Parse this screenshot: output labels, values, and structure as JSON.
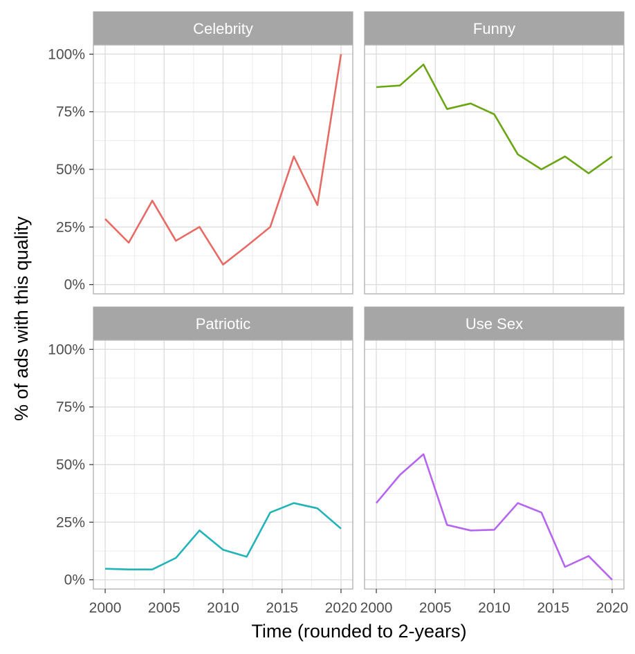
{
  "chart_data": {
    "type": "line",
    "layout": "facet-grid-2x2",
    "xlabel": "Time (rounded to 2-years)",
    "ylabel": "% of ads with this quality",
    "xlim": [
      1999,
      2021
    ],
    "ylim": [
      -4,
      104
    ],
    "x_ticks": [
      2000,
      2005,
      2010,
      2015,
      2020
    ],
    "x_tick_labels": [
      "2000",
      "2005",
      "2010",
      "2015",
      "2020"
    ],
    "y_ticks": [
      0,
      25,
      50,
      75,
      100
    ],
    "y_tick_labels": [
      "0%",
      "25%",
      "50%",
      "75%",
      "100%"
    ],
    "grid": true,
    "x": [
      2000,
      2002,
      2004,
      2006,
      2008,
      2010,
      2012,
      2014,
      2016,
      2018,
      2020
    ],
    "panels": [
      {
        "name": "Celebrity",
        "color": "#E76A64",
        "values": [
          28.5,
          18.2,
          36.4,
          19.0,
          25.0,
          8.7,
          16.7,
          25.0,
          55.6,
          34.5,
          100.0
        ]
      },
      {
        "name": "Funny",
        "color": "#6AA512",
        "values": [
          85.7,
          86.4,
          95.5,
          76.2,
          78.6,
          73.9,
          56.5,
          50.0,
          55.6,
          48.3,
          55.6
        ]
      },
      {
        "name": "Patriotic",
        "color": "#20B3B8",
        "values": [
          4.8,
          4.5,
          4.5,
          9.5,
          21.4,
          13.0,
          10.0,
          29.2,
          33.3,
          31.0,
          22.2
        ]
      },
      {
        "name": "Use Sex",
        "color": "#B565F0",
        "values": [
          33.3,
          45.5,
          54.5,
          23.8,
          21.4,
          21.7,
          33.3,
          29.2,
          5.6,
          10.3,
          0.0
        ]
      }
    ]
  }
}
